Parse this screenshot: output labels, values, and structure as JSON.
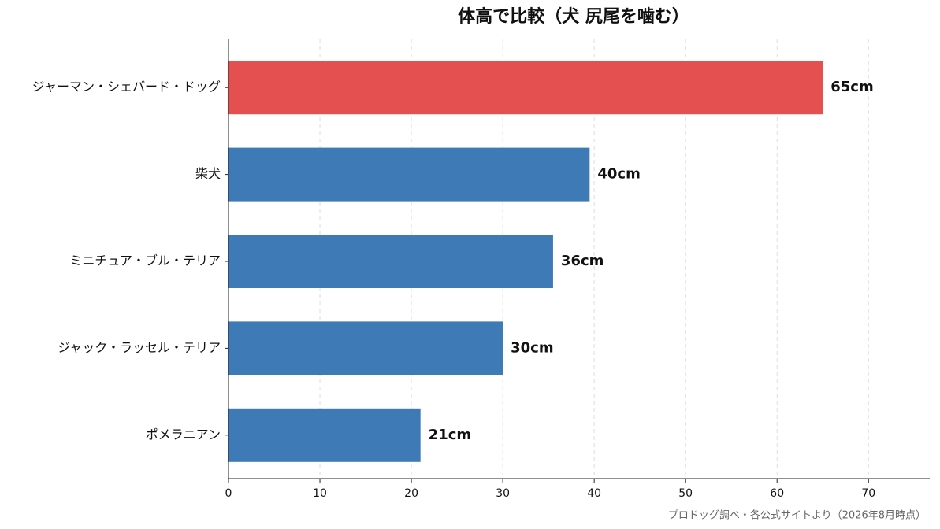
{
  "chart_data": {
    "type": "bar",
    "orientation": "horizontal",
    "title": "体高で比較（犬 尻尾を噛む）",
    "categories": [
      "ジャーマン・シェパード・ドッグ",
      "柴犬",
      "ミニチュア・ブル・テリア",
      "ジャック・ラッセル・テリア",
      "ポメラニアン"
    ],
    "values": [
      65,
      39.5,
      35.5,
      30,
      21
    ],
    "value_labels": [
      "65cm",
      "40cm",
      "36cm",
      "30cm",
      "21cm"
    ],
    "colors": [
      "#e45050",
      "#3d7ab6",
      "#3d7ab6",
      "#3d7ab6",
      "#3d7ab6"
    ],
    "xlim": [
      0,
      76.7
    ],
    "xticks": [
      0,
      10,
      20,
      30,
      40,
      50,
      60,
      70
    ],
    "grid": true,
    "source": "プロドッグ調べ・各公式サイトより（2026年8月時点）"
  }
}
